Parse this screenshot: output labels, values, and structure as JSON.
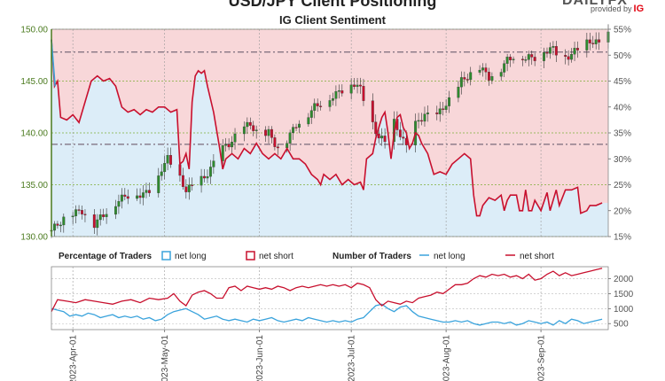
{
  "header": {
    "title": "USD/JPY Client Positioning",
    "subtitle": "IG Client Sentiment",
    "brand_top": "DAILYFX",
    "brand_text": "provided by",
    "brand_ig": "IG"
  },
  "legend": {
    "pct_heading": "Percentage of Traders",
    "pct_long": "net long",
    "pct_short": "net short",
    "num_heading": "Number of Traders",
    "num_long": "net long",
    "num_short": "net short"
  },
  "colors": {
    "long": "#3aa3dc",
    "short": "#c8102e",
    "short_fill": "#f8d7d9",
    "long_fill": "#dcedf8",
    "candle_up": "#2e8b2e",
    "candle_down": "#c8102e",
    "price_axis": "#4a7a1e"
  },
  "chart_data": [
    {
      "type": "candlestick",
      "name": "price",
      "y_ticks": [
        "150.00",
        "145.00",
        "140.00",
        "135.00",
        "130.00"
      ],
      "ylim": [
        130,
        150
      ],
      "reference_lines": [
        147.8,
        138.9
      ],
      "x_labels": [
        "2023-Apr-01",
        "2023-May-01",
        "2023-Jun-01",
        "2023-Jul-01",
        "2023-Aug-01",
        "2023-Sep-01"
      ],
      "x_label_day_index": [
        7,
        37,
        68,
        98,
        129,
        160
      ],
      "day_count": 183,
      "approx_close": [
        [
          0,
          130.6
        ],
        [
          5,
          132.0
        ],
        [
          10,
          132.5
        ],
        [
          14,
          131.2
        ],
        [
          18,
          132.4
        ],
        [
          22,
          133.5
        ],
        [
          26,
          134.2
        ],
        [
          30,
          134.0
        ],
        [
          34,
          135.0
        ],
        [
          36,
          136.6
        ],
        [
          38,
          137.5
        ],
        [
          41,
          136.2
        ],
        [
          44,
          134.5
        ],
        [
          47,
          135.0
        ],
        [
          50,
          135.7
        ],
        [
          53,
          137.0
        ],
        [
          56,
          138.5
        ],
        [
          59,
          139.2
        ],
        [
          62,
          140.3
        ],
        [
          65,
          140.9
        ],
        [
          68,
          139.6
        ],
        [
          71,
          140.0
        ],
        [
          74,
          138.5
        ],
        [
          77,
          139.3
        ],
        [
          80,
          140.8
        ],
        [
          83,
          141.5
        ],
        [
          86,
          142.5
        ],
        [
          90,
          143.2
        ],
        [
          93,
          143.7
        ],
        [
          96,
          144.4
        ],
        [
          99,
          144.8
        ],
        [
          101,
          144.2
        ],
        [
          104,
          141.5
        ],
        [
          107,
          139.6
        ],
        [
          110,
          138.9
        ],
        [
          112,
          141.0
        ],
        [
          114,
          139.9
        ],
        [
          116,
          138.6
        ],
        [
          119,
          140.8
        ],
        [
          122,
          141.8
        ],
        [
          125,
          141.2
        ],
        [
          128,
          142.5
        ],
        [
          131,
          143.4
        ],
        [
          134,
          145.0
        ],
        [
          137,
          145.7
        ],
        [
          140,
          146.3
        ],
        [
          143,
          145.4
        ],
        [
          146,
          145.8
        ],
        [
          149,
          147.0
        ],
        [
          152,
          147.6
        ],
        [
          155,
          147.2
        ],
        [
          158,
          147.3
        ],
        [
          161,
          147.9
        ],
        [
          164,
          148.1
        ],
        [
          167,
          147.1
        ],
        [
          170,
          147.6
        ],
        [
          173,
          148.3
        ],
        [
          176,
          148.9
        ],
        [
          179,
          148.6
        ],
        [
          182,
          149.4
        ]
      ]
    },
    {
      "type": "line",
      "name": "net short percentage",
      "y_ticks": [
        "55%",
        "50%",
        "45%",
        "40%",
        "35%",
        "30%",
        "25%",
        "20%",
        "15%"
      ],
      "ylim": [
        15,
        55
      ],
      "net_short_pct": [
        [
          0,
          53
        ],
        [
          1,
          44
        ],
        [
          2,
          45
        ],
        [
          3,
          38
        ],
        [
          5,
          37.5
        ],
        [
          7,
          38.5
        ],
        [
          9,
          37
        ],
        [
          11,
          41
        ],
        [
          13,
          45
        ],
        [
          15,
          46
        ],
        [
          17,
          45
        ],
        [
          19,
          45.5
        ],
        [
          21,
          44
        ],
        [
          23,
          40
        ],
        [
          25,
          39
        ],
        [
          27,
          39.5
        ],
        [
          29,
          38.5
        ],
        [
          31,
          39.5
        ],
        [
          33,
          39
        ],
        [
          35,
          40
        ],
        [
          37,
          40
        ],
        [
          39,
          39
        ],
        [
          41,
          39.5
        ],
        [
          42,
          29
        ],
        [
          43,
          29.5
        ],
        [
          44,
          31
        ],
        [
          45,
          28
        ],
        [
          46,
          41
        ],
        [
          47,
          46
        ],
        [
          48,
          47
        ],
        [
          49,
          46.5
        ],
        [
          50,
          47
        ],
        [
          51,
          44
        ],
        [
          53,
          39
        ],
        [
          55,
          32
        ],
        [
          56,
          28
        ],
        [
          57,
          30
        ],
        [
          59,
          31
        ],
        [
          61,
          30
        ],
        [
          63,
          32
        ],
        [
          65,
          31
        ],
        [
          67,
          33
        ],
        [
          69,
          31
        ],
        [
          71,
          30
        ],
        [
          73,
          31
        ],
        [
          75,
          30
        ],
        [
          77,
          32
        ],
        [
          79,
          30
        ],
        [
          81,
          30
        ],
        [
          83,
          29
        ],
        [
          85,
          27
        ],
        [
          87,
          26
        ],
        [
          88,
          25
        ],
        [
          89,
          27
        ],
        [
          91,
          26
        ],
        [
          93,
          27
        ],
        [
          95,
          25
        ],
        [
          97,
          26
        ],
        [
          99,
          25
        ],
        [
          101,
          25.5
        ],
        [
          102,
          24
        ],
        [
          103,
          30
        ],
        [
          105,
          31
        ],
        [
          106,
          34
        ],
        [
          107,
          36
        ],
        [
          108,
          38
        ],
        [
          109,
          39
        ],
        [
          110,
          35
        ],
        [
          111,
          30
        ],
        [
          112,
          35
        ],
        [
          113,
          38
        ],
        [
          114,
          38.5
        ],
        [
          115,
          36
        ],
        [
          116,
          35
        ],
        [
          117,
          32
        ],
        [
          118,
          33
        ],
        [
          119,
          35
        ],
        [
          120,
          34.5
        ],
        [
          121,
          33
        ],
        [
          123,
          31
        ],
        [
          125,
          27
        ],
        [
          127,
          27.5
        ],
        [
          129,
          27
        ],
        [
          131,
          29
        ],
        [
          133,
          30
        ],
        [
          135,
          31
        ],
        [
          137,
          30
        ],
        [
          138,
          23
        ],
        [
          139,
          19
        ],
        [
          140,
          19
        ],
        [
          141,
          21
        ],
        [
          143,
          22.5
        ],
        [
          145,
          22
        ],
        [
          147,
          23
        ],
        [
          148,
          20
        ],
        [
          149,
          22
        ],
        [
          150,
          23
        ],
        [
          152,
          23
        ],
        [
          153,
          20
        ],
        [
          154,
          20
        ],
        [
          155,
          24
        ],
        [
          156,
          20
        ],
        [
          157,
          20
        ],
        [
          158,
          22
        ],
        [
          160,
          20
        ],
        [
          162,
          23.5
        ],
        [
          163,
          20
        ],
        [
          165,
          24
        ],
        [
          166,
          21
        ],
        [
          168,
          24
        ],
        [
          170,
          24
        ],
        [
          172,
          24.5
        ],
        [
          173,
          19.5
        ],
        [
          175,
          20
        ],
        [
          176,
          21
        ],
        [
          178,
          21
        ],
        [
          180,
          21.5
        ]
      ]
    },
    {
      "type": "line",
      "name": "number of traders",
      "y_ticks": [
        "2000",
        "1500",
        "1000",
        "500"
      ],
      "ylim": [
        300,
        2400
      ],
      "net_short": [
        [
          0,
          900
        ],
        [
          2,
          1300
        ],
        [
          5,
          1250
        ],
        [
          8,
          1200
        ],
        [
          11,
          1300
        ],
        [
          14,
          1250
        ],
        [
          17,
          1200
        ],
        [
          20,
          1150
        ],
        [
          23,
          1250
        ],
        [
          26,
          1300
        ],
        [
          29,
          1200
        ],
        [
          32,
          1350
        ],
        [
          35,
          1300
        ],
        [
          38,
          1350
        ],
        [
          40,
          1500
        ],
        [
          42,
          1250
        ],
        [
          44,
          1100
        ],
        [
          46,
          1450
        ],
        [
          48,
          1550
        ],
        [
          50,
          1600
        ],
        [
          52,
          1500
        ],
        [
          54,
          1350
        ],
        [
          56,
          1350
        ],
        [
          58,
          1700
        ],
        [
          60,
          1750
        ],
        [
          62,
          1600
        ],
        [
          64,
          1750
        ],
        [
          66,
          1700
        ],
        [
          68,
          1650
        ],
        [
          70,
          1700
        ],
        [
          72,
          1650
        ],
        [
          74,
          1750
        ],
        [
          76,
          1700
        ],
        [
          78,
          1600
        ],
        [
          80,
          1700
        ],
        [
          82,
          1750
        ],
        [
          84,
          1700
        ],
        [
          86,
          1750
        ],
        [
          88,
          1800
        ],
        [
          90,
          1750
        ],
        [
          92,
          1800
        ],
        [
          94,
          1750
        ],
        [
          96,
          1800
        ],
        [
          98,
          1700
        ],
        [
          100,
          1850
        ],
        [
          102,
          1800
        ],
        [
          104,
          1700
        ],
        [
          106,
          1300
        ],
        [
          108,
          1100
        ],
        [
          110,
          1250
        ],
        [
          112,
          1200
        ],
        [
          114,
          1150
        ],
        [
          116,
          1250
        ],
        [
          118,
          1200
        ],
        [
          120,
          1350
        ],
        [
          122,
          1400
        ],
        [
          124,
          1450
        ],
        [
          126,
          1550
        ],
        [
          128,
          1500
        ],
        [
          130,
          1650
        ],
        [
          132,
          1800
        ],
        [
          134,
          1800
        ],
        [
          136,
          1850
        ],
        [
          138,
          2000
        ],
        [
          140,
          2100
        ],
        [
          142,
          2050
        ],
        [
          144,
          2150
        ],
        [
          146,
          2100
        ],
        [
          148,
          2150
        ],
        [
          150,
          2050
        ],
        [
          152,
          2100
        ],
        [
          154,
          2000
        ],
        [
          156,
          2150
        ],
        [
          158,
          1950
        ],
        [
          160,
          2000
        ],
        [
          162,
          2150
        ],
        [
          164,
          2250
        ],
        [
          166,
          2100
        ],
        [
          168,
          2200
        ],
        [
          170,
          2100
        ],
        [
          172,
          2150
        ],
        [
          174,
          2200
        ],
        [
          176,
          2250
        ],
        [
          178,
          2300
        ],
        [
          180,
          2350
        ]
      ],
      "net_long": [
        [
          0,
          1000
        ],
        [
          2,
          950
        ],
        [
          4,
          900
        ],
        [
          6,
          750
        ],
        [
          8,
          800
        ],
        [
          10,
          750
        ],
        [
          12,
          850
        ],
        [
          14,
          800
        ],
        [
          16,
          700
        ],
        [
          18,
          750
        ],
        [
          20,
          800
        ],
        [
          22,
          700
        ],
        [
          24,
          750
        ],
        [
          26,
          700
        ],
        [
          28,
          750
        ],
        [
          30,
          650
        ],
        [
          32,
          700
        ],
        [
          34,
          600
        ],
        [
          36,
          650
        ],
        [
          38,
          800
        ],
        [
          40,
          900
        ],
        [
          42,
          950
        ],
        [
          44,
          1000
        ],
        [
          46,
          900
        ],
        [
          48,
          800
        ],
        [
          50,
          650
        ],
        [
          52,
          700
        ],
        [
          54,
          750
        ],
        [
          56,
          650
        ],
        [
          58,
          600
        ],
        [
          60,
          650
        ],
        [
          62,
          600
        ],
        [
          64,
          550
        ],
        [
          66,
          650
        ],
        [
          68,
          600
        ],
        [
          70,
          650
        ],
        [
          72,
          700
        ],
        [
          74,
          600
        ],
        [
          76,
          550
        ],
        [
          78,
          600
        ],
        [
          80,
          650
        ],
        [
          82,
          600
        ],
        [
          84,
          700
        ],
        [
          86,
          650
        ],
        [
          88,
          600
        ],
        [
          90,
          550
        ],
        [
          92,
          600
        ],
        [
          94,
          550
        ],
        [
          96,
          600
        ],
        [
          98,
          550
        ],
        [
          100,
          650
        ],
        [
          102,
          700
        ],
        [
          104,
          900
        ],
        [
          106,
          1100
        ],
        [
          108,
          1150
        ],
        [
          110,
          1000
        ],
        [
          112,
          900
        ],
        [
          114,
          1050
        ],
        [
          116,
          1100
        ],
        [
          118,
          900
        ],
        [
          120,
          750
        ],
        [
          122,
          700
        ],
        [
          124,
          650
        ],
        [
          126,
          600
        ],
        [
          128,
          550
        ],
        [
          130,
          550
        ],
        [
          132,
          600
        ],
        [
          134,
          550
        ],
        [
          136,
          600
        ],
        [
          138,
          500
        ],
        [
          140,
          450
        ],
        [
          142,
          500
        ],
        [
          144,
          550
        ],
        [
          146,
          550
        ],
        [
          148,
          500
        ],
        [
          150,
          550
        ],
        [
          152,
          450
        ],
        [
          154,
          500
        ],
        [
          156,
          600
        ],
        [
          158,
          550
        ],
        [
          160,
          500
        ],
        [
          162,
          550
        ],
        [
          164,
          450
        ],
        [
          166,
          600
        ],
        [
          168,
          500
        ],
        [
          170,
          650
        ],
        [
          172,
          600
        ],
        [
          174,
          500
        ],
        [
          176,
          550
        ],
        [
          178,
          600
        ],
        [
          180,
          650
        ]
      ]
    }
  ]
}
